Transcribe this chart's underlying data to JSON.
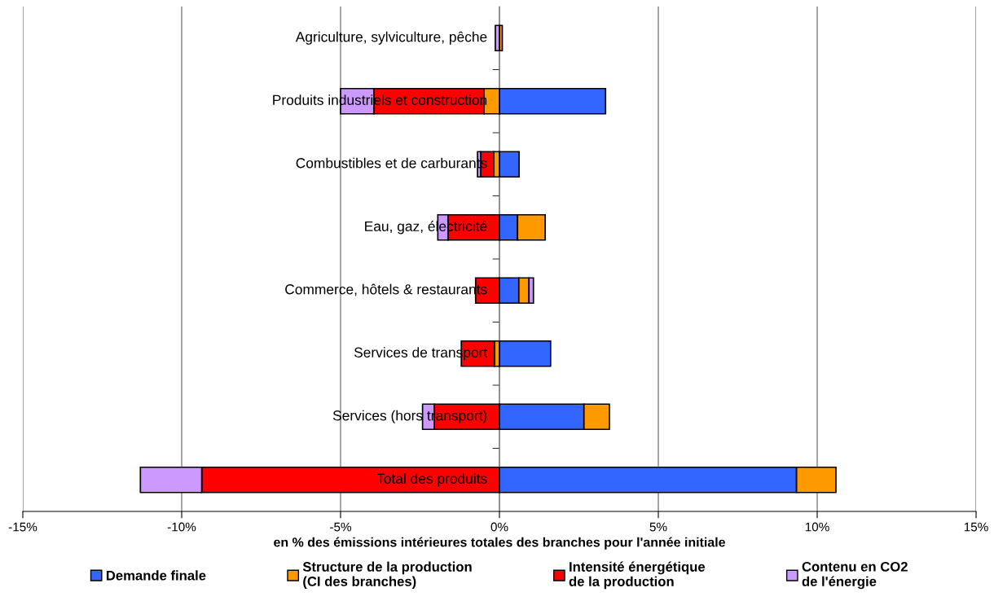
{
  "chart_data": {
    "type": "bar",
    "orientation": "horizontal",
    "stacked": true,
    "categories": [
      "Agriculture, sylviculture, pêche",
      "Produits industriels et construction",
      "Combustibles et de carburants",
      "Eau, gaz, électricité",
      "Commerce, hôtels & restaurants",
      "Services de transport",
      "Services (hors transport)",
      "Total des produits"
    ],
    "series": [
      {
        "name": "Demande finale",
        "color": "#3366ff",
        "values": [
          null,
          3.34,
          0.62,
          0.57,
          0.61,
          1.61,
          2.66,
          9.35
        ]
      },
      {
        "name": "Structure de la production\n(CI des branches)",
        "color": "#ff9900",
        "values": [
          0.09,
          -0.49,
          -0.18,
          0.87,
          0.32,
          -0.16,
          0.8,
          1.24
        ]
      },
      {
        "name": "Intensité énergétique\nde la production",
        "color": "#ff0000",
        "values": [
          null,
          -3.46,
          -0.41,
          -1.62,
          -0.75,
          -1.04,
          -2.05,
          -9.37
        ]
      },
      {
        "name": "Contenu en CO2\nde l'énergie",
        "color": "#cc99ff",
        "values": [
          -0.13,
          -1.05,
          -0.1,
          -0.32,
          0.14,
          null,
          -0.37,
          -1.93
        ]
      }
    ],
    "xlabel": "en % des émissions intérieures totales des branches pour l'année initiale",
    "xlim": [
      -15,
      15
    ],
    "xticks": [
      {
        "value": -15,
        "label": "-15%"
      },
      {
        "value": -10,
        "label": "-10%"
      },
      {
        "value": -5,
        "label": "-5%"
      },
      {
        "value": 0,
        "label": "0%"
      },
      {
        "value": 5,
        "label": "5%"
      },
      {
        "value": 10,
        "label": "10%"
      },
      {
        "value": 15,
        "label": "15%"
      }
    ],
    "grid": "x",
    "legend": "bottom"
  }
}
